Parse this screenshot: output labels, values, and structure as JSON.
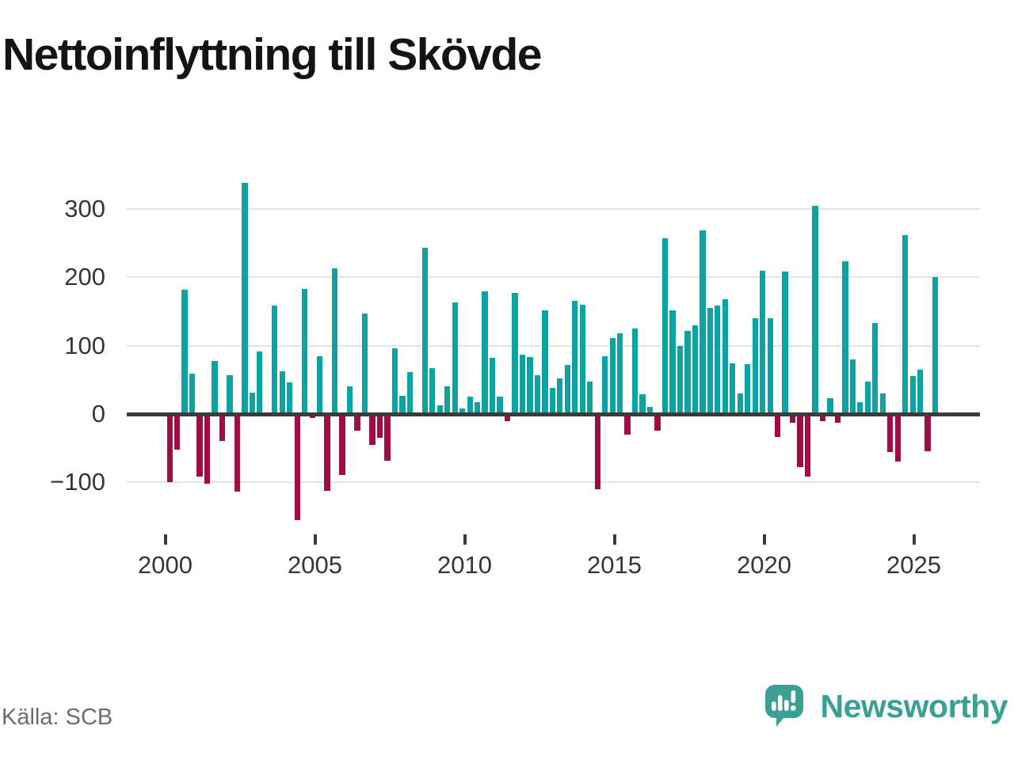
{
  "title": "Nettoinflyttning till Skövde",
  "source": "Källa: SCB",
  "brand": {
    "name": "Newsworthy",
    "color": "#3aa094"
  },
  "chart_data": {
    "type": "bar",
    "title": "Nettoinflyttning till Skövde",
    "frequency": "quarterly",
    "start_year": 2000,
    "start_quarter": 1,
    "end_year": 2025,
    "end_quarter": 3,
    "series": [
      {
        "name": "Nettoinflyttning",
        "values": [
          -100,
          -52,
          182,
          59,
          -92,
          -102,
          77,
          -39,
          57,
          -114,
          338,
          31,
          92,
          -4,
          158,
          63,
          46,
          -155,
          183,
          -6,
          85,
          -112,
          213,
          -89,
          40,
          -24,
          147,
          -45,
          -35,
          -68,
          96,
          27,
          61,
          2,
          243,
          67,
          13,
          40,
          163,
          8,
          25,
          17,
          179,
          82,
          26,
          -10,
          177,
          87,
          83,
          57,
          152,
          38,
          52,
          72,
          165,
          160,
          48,
          -110,
          85,
          111,
          118,
          -30,
          125,
          29,
          10,
          -24,
          257,
          152,
          100,
          122,
          130,
          268,
          155,
          158,
          168,
          74,
          30,
          73,
          140,
          209,
          140,
          -33,
          208,
          -13,
          -78,
          -92,
          304,
          -10,
          23,
          -13,
          223,
          80,
          17,
          47,
          133,
          30,
          -55,
          -70,
          261,
          55,
          65,
          -54,
          200
        ]
      }
    ],
    "xticks": [
      {
        "year": 2000,
        "label": "2000"
      },
      {
        "year": 2005,
        "label": "2005"
      },
      {
        "year": 2010,
        "label": "2010"
      },
      {
        "year": 2015,
        "label": "2015"
      },
      {
        "year": 2020,
        "label": "2020"
      },
      {
        "year": 2025,
        "label": "2025"
      }
    ],
    "yticks": [
      {
        "value": 300,
        "label": "300"
      },
      {
        "value": 200,
        "label": "200"
      },
      {
        "value": 100,
        "label": "100"
      },
      {
        "value": 0,
        "label": "0"
      },
      {
        "value": -100,
        "label": "−100"
      }
    ],
    "ylim": [
      -170,
      350
    ],
    "grid": true,
    "legend": "none",
    "positive_color": "#0da3a3",
    "negative_color": "#a00d45"
  }
}
